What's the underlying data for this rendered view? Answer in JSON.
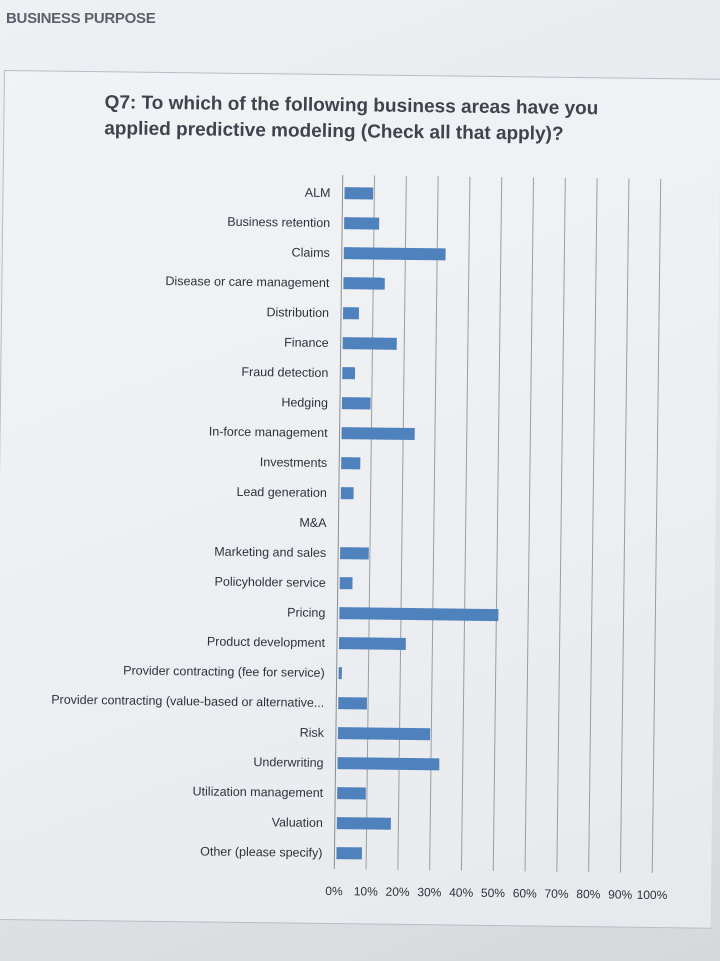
{
  "section": {
    "label": "BUSINESS PURPOSE"
  },
  "question": {
    "text": "Q7: To which of the following business areas have you applied predictive modeling (Check all that apply)?"
  },
  "chart_data": {
    "type": "bar",
    "orientation": "horizontal",
    "title": "Q7: To which of the following business areas have you applied predictive modeling (Check all that apply)?",
    "xlabel": "",
    "ylabel": "",
    "xlim": [
      0,
      100
    ],
    "grid": true,
    "bar_color": "#4f81bd",
    "categories": [
      "ALM",
      "Business retention",
      "Claims",
      "Disease or care management",
      "Distribution",
      "Finance",
      "Fraud detection",
      "Hedging",
      "In-force management",
      "Investments",
      "Lead generation",
      "M&A",
      "Marketing and sales",
      "Policyholder service",
      "Pricing",
      "Product development",
      "Provider contracting (fee for service)",
      "Provider contracting (value-based or alternative...",
      "Risk",
      "Underwriting",
      "Utilization management",
      "Valuation",
      "Other (please specify)"
    ],
    "values": [
      9,
      11,
      32,
      13,
      5,
      17,
      4,
      9,
      23,
      6,
      4,
      0,
      9,
      4,
      50,
      21,
      1,
      9,
      29,
      32,
      9,
      17,
      8
    ],
    "tick_labels": [
      "0%",
      "10%",
      "20%",
      "30%",
      "40%",
      "50%",
      "60%",
      "70%",
      "80%",
      "90%",
      "100%"
    ]
  }
}
